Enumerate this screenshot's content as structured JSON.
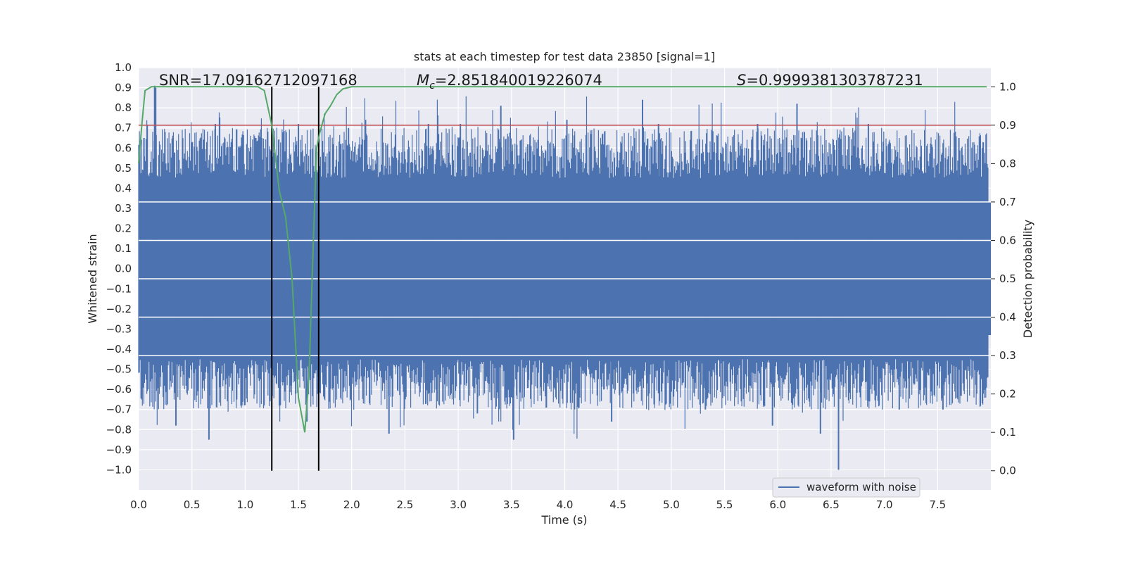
{
  "chart_data": {
    "type": "line",
    "title": "stats at each timestep for test data 23850 [signal=1]",
    "xlabel": "Time (s)",
    "ylabel": "Whitened strain",
    "y2label": "Detection probability",
    "xlim": [
      0.0,
      8.0
    ],
    "ylim": [
      -1.1,
      1.0
    ],
    "y2lim": [
      -0.05,
      1.05
    ],
    "xticks": [
      "0.0",
      "0.5",
      "1.0",
      "1.5",
      "2.0",
      "2.5",
      "3.0",
      "3.5",
      "4.0",
      "4.5",
      "5.0",
      "5.5",
      "6.0",
      "6.5",
      "7.0",
      "7.5"
    ],
    "yticks": [
      "1.0",
      "0.9",
      "0.8",
      "0.7",
      "0.6",
      "0.5",
      "0.4",
      "0.3",
      "0.2",
      "0.1",
      "0.0",
      "−0.1",
      "−0.2",
      "−0.3",
      "−0.4",
      "−0.5",
      "−0.6",
      "−0.7",
      "−0.8",
      "−0.9",
      "−1.0"
    ],
    "y2ticks": [
      "1.0",
      "0.9",
      "0.8",
      "0.7",
      "0.6",
      "0.5",
      "0.4",
      "0.3",
      "0.2",
      "0.1",
      "0.0"
    ],
    "grid": true,
    "legend": {
      "position": "lower-right",
      "entries": [
        "waveform with noise"
      ]
    },
    "annotations": {
      "snr": "SNR=17.09162712097168",
      "mc_symbol": "M",
      "mc_sub": "c",
      "mc_value": "=2.851840019226074",
      "s_symbol": "S",
      "s_value": "=0.9999381303787231"
    },
    "threshold_y2": 0.9,
    "vlines_x": [
      1.25,
      1.69
    ],
    "waveform": {
      "name": "waveform with noise",
      "color": "#4c72b0",
      "band_core": [
        -0.45,
        0.45
      ],
      "spikes": [
        {
          "x": 0.15,
          "y": 0.91
        },
        {
          "x": 0.16,
          "y": 0.9
        },
        {
          "x": 0.05,
          "y": 0.65
        },
        {
          "x": 0.66,
          "y": -0.85
        },
        {
          "x": 0.72,
          "y": 0.72
        },
        {
          "x": 1.1,
          "y": 0.65
        },
        {
          "x": 1.5,
          "y": 0.72
        },
        {
          "x": 1.97,
          "y": 0.7
        },
        {
          "x": 2.13,
          "y": 0.74
        },
        {
          "x": 2.35,
          "y": -0.82
        },
        {
          "x": 2.72,
          "y": 0.72
        },
        {
          "x": 3.02,
          "y": 0.72
        },
        {
          "x": 3.4,
          "y": 0.81
        },
        {
          "x": 3.52,
          "y": -0.85
        },
        {
          "x": 4.02,
          "y": 0.74
        },
        {
          "x": 4.44,
          "y": -0.76
        },
        {
          "x": 4.73,
          "y": 0.84
        },
        {
          "x": 4.88,
          "y": 0.72
        },
        {
          "x": 5.81,
          "y": 0.72
        },
        {
          "x": 5.95,
          "y": -0.78
        },
        {
          "x": 6.18,
          "y": 0.82
        },
        {
          "x": 6.4,
          "y": -0.82
        },
        {
          "x": 6.57,
          "y": -1.0
        },
        {
          "x": 6.85,
          "y": 0.72
        },
        {
          "x": 7.14,
          "y": -0.7
        },
        {
          "x": 7.55,
          "y": -0.7
        },
        {
          "x": 7.7,
          "y": 0.65
        },
        {
          "x": 0.35,
          "y": -0.78
        },
        {
          "x": 1.58,
          "y": -0.76
        },
        {
          "x": 3.18,
          "y": -0.72
        },
        {
          "x": 5.32,
          "y": -0.7
        },
        {
          "x": 7.92,
          "y": 0.6
        }
      ]
    },
    "probability": {
      "name": "detection probability",
      "color": "#55a868",
      "x": [
        0.0,
        0.03,
        0.06,
        0.12,
        0.2,
        0.5,
        1.0,
        1.12,
        1.18,
        1.25,
        1.32,
        1.38,
        1.44,
        1.5,
        1.56,
        1.6,
        1.64,
        1.67,
        1.7,
        1.75,
        1.8,
        1.86,
        1.92,
        2.0,
        2.5,
        3.0,
        4.0,
        5.0,
        6.0,
        7.0,
        7.96
      ],
      "y": [
        0.8,
        0.9,
        0.99,
        1.0,
        1.0,
        1.0,
        1.0,
        1.0,
        0.99,
        0.9,
        0.73,
        0.66,
        0.5,
        0.19,
        0.1,
        0.25,
        0.6,
        0.84,
        0.88,
        0.93,
        0.95,
        0.98,
        0.995,
        1.0,
        1.0,
        1.0,
        1.0,
        1.0,
        1.0,
        1.0,
        1.0
      ]
    },
    "colors": {
      "threshold": "#c44e52",
      "vline": "#000000",
      "grid": "#ffffff",
      "plot_bg": "#eaeaf2"
    }
  }
}
